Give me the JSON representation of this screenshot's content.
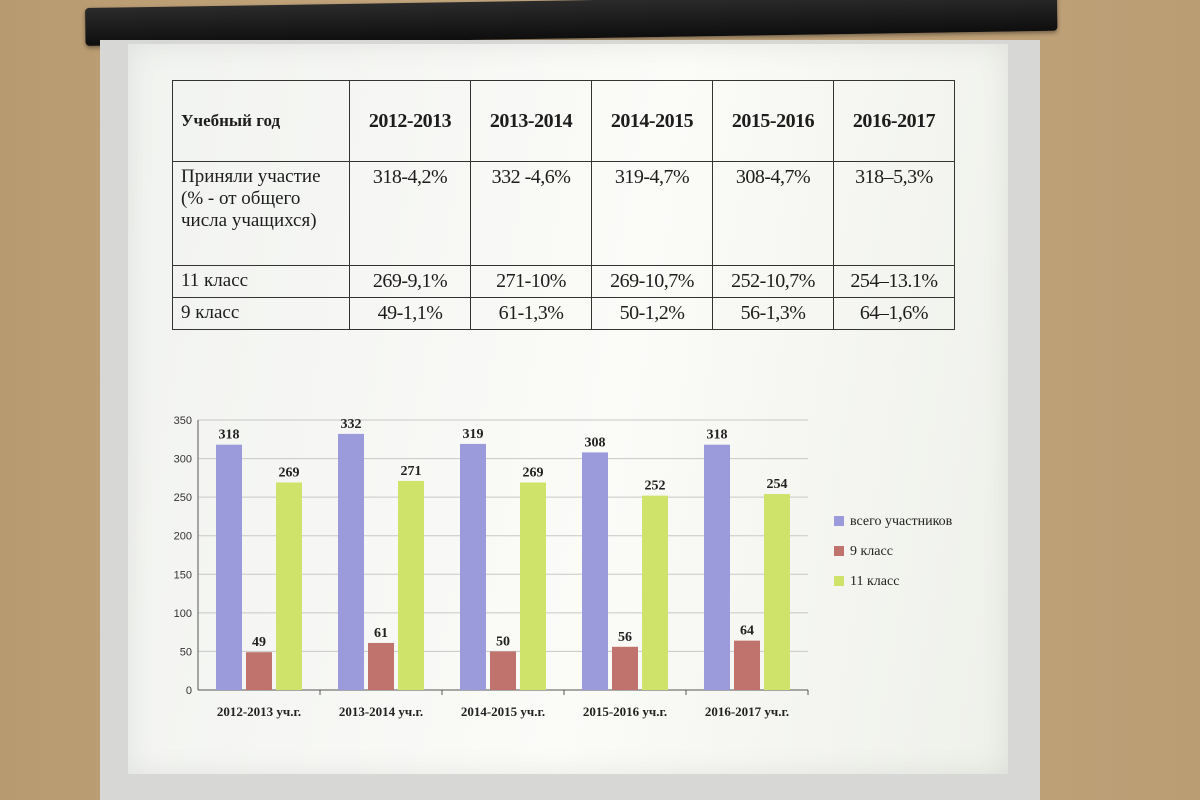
{
  "table": {
    "header_label": "Учебный год",
    "years": [
      "2012-2013",
      "2013-2014",
      "2014-2015",
      "2015-2016",
      "2016-2017"
    ],
    "rows": [
      {
        "label": "Приняли участие (% - от общего числа учащихся)",
        "cells": [
          "318-4,2%",
          "332 -4,6%",
          "319-4,7%",
          "308-4,7%",
          "318–5,3%"
        ]
      },
      {
        "label": "11 класс",
        "cells": [
          "269-9,1%",
          "271-10%",
          "269-10,7%",
          "252-10,7%",
          "254–13.1%"
        ]
      },
      {
        "label": "9 класс",
        "cells": [
          "49-1,1%",
          "61-1,3%",
          "50-1,2%",
          "56-1,3%",
          "64–1,6%"
        ]
      }
    ]
  },
  "chart_data": {
    "type": "bar",
    "categories": [
      "2012-2013 уч.г.",
      "2013-2014 уч.г.",
      "2014-2015 уч.г.",
      "2015-2016 уч.г.",
      "2016-2017 уч.г."
    ],
    "series": [
      {
        "name": "всего участников",
        "color": "#9b9bdc",
        "values": [
          318,
          332,
          319,
          308,
          318
        ]
      },
      {
        "name": "9 класс",
        "color": "#c0726c",
        "values": [
          49,
          61,
          50,
          56,
          64
        ]
      },
      {
        "name": "11 класс",
        "color": "#cfe26a",
        "values": [
          269,
          271,
          269,
          252,
          254
        ]
      }
    ],
    "ylim": [
      0,
      350
    ],
    "yticks": [
      0,
      50,
      100,
      150,
      200,
      250,
      300,
      350
    ],
    "grid": true,
    "legend": "right"
  }
}
